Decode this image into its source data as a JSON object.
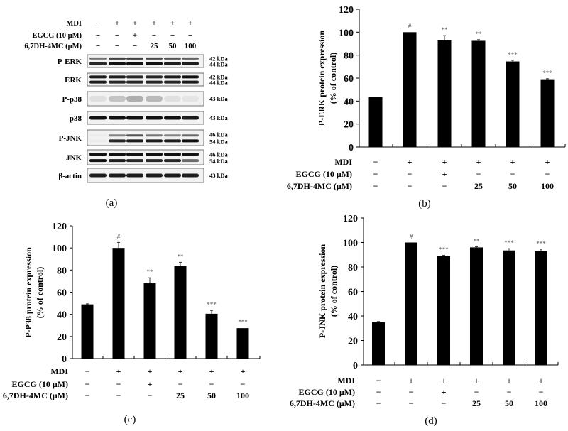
{
  "blot": {
    "panel_label": "(a)",
    "treatments": [
      {
        "label": "MDI",
        "values": [
          "−",
          "+",
          "+",
          "+",
          "+",
          "+"
        ]
      },
      {
        "label": "EGCG (10 μM)",
        "values": [
          "−",
          "−",
          "+",
          "−",
          "−",
          "−"
        ]
      },
      {
        "label": "6,7DH-4MC (μM)",
        "values": [
          "−",
          "−",
          "−",
          "25",
          "50",
          "100"
        ]
      }
    ],
    "rows": [
      {
        "label": "P-ERK",
        "kda": [
          "42 kDa",
          "44 kDa"
        ]
      },
      {
        "label": "ERK",
        "kda": [
          "42 kDa",
          "44 kDa"
        ]
      },
      {
        "label": "P-p38",
        "kda": [
          "43 kDa"
        ]
      },
      {
        "label": "p38",
        "kda": [
          "43 kDa"
        ]
      },
      {
        "label": "P-JNK",
        "kda": [
          "46 kDa",
          "54 kDa"
        ]
      },
      {
        "label": "JNK",
        "kda": [
          "46 kDa",
          "54 kDa"
        ]
      },
      {
        "label": "β-actin",
        "kda": [
          "43 kDa"
        ]
      }
    ]
  },
  "chart_data": [
    {
      "panel_label": "(b)",
      "type": "bar",
      "ylabel": [
        "P-ERK protein expression",
        "(% of control)"
      ],
      "ylim": [
        0,
        120
      ],
      "yticks": [
        0,
        20,
        40,
        60,
        80,
        100,
        120
      ],
      "values": [
        43.5,
        100,
        93,
        92.5,
        74.5,
        59
      ],
      "errors": [
        0.3,
        0.3,
        4,
        1,
        1,
        0.5
      ],
      "annotations": [
        "",
        "#",
        "**",
        "**",
        "***",
        "***"
      ],
      "bar_color": "#000000",
      "treatments": [
        {
          "label": "MDI",
          "values": [
            "−",
            "+",
            "+",
            "+",
            "+",
            "+"
          ]
        },
        {
          "label": "EGCG (10 μM)",
          "values": [
            "−",
            "−",
            "+",
            "−",
            "−",
            "−"
          ]
        },
        {
          "label": "6,7DH-4MC (μM)",
          "values": [
            "−",
            "−",
            "−",
            "25",
            "50",
            "100"
          ]
        }
      ]
    },
    {
      "panel_label": "(c)",
      "type": "bar",
      "ylabel": [
        "P-P38 protein expression",
        "(% of control)"
      ],
      "ylim": [
        0,
        120
      ],
      "yticks": [
        0,
        20,
        40,
        60,
        80,
        100,
        120
      ],
      "values": [
        49,
        100,
        68,
        83.5,
        40.5,
        27.5
      ],
      "errors": [
        0.5,
        5,
        5,
        3.5,
        3,
        0.3
      ],
      "annotations": [
        "",
        "#",
        "**",
        "**",
        "***",
        "***"
      ],
      "bar_color": "#000000",
      "treatments": [
        {
          "label": "MDI",
          "values": [
            "−",
            "+",
            "+",
            "+",
            "+",
            "+"
          ]
        },
        {
          "label": "EGCG (10 μM)",
          "values": [
            "−",
            "−",
            "+",
            "−",
            "−",
            "−"
          ]
        },
        {
          "label": "6,7DH-4MC (μM)",
          "values": [
            "−",
            "−",
            "−",
            "25",
            "50",
            "100"
          ]
        }
      ]
    },
    {
      "panel_label": "(d)",
      "type": "bar",
      "ylabel": [
        "P-JNK protein expression",
        "(% of control)"
      ],
      "ylim": [
        0,
        120
      ],
      "yticks": [
        0,
        20,
        40,
        60,
        80,
        100,
        120
      ],
      "values": [
        35,
        100,
        89,
        96,
        93.5,
        93
      ],
      "errors": [
        0.5,
        0.3,
        0.5,
        0.5,
        1.5,
        1.5
      ],
      "annotations": [
        "",
        "#",
        "***",
        "**",
        "***",
        "***"
      ],
      "bar_color": "#000000",
      "treatments": [
        {
          "label": "MDI",
          "values": [
            "−",
            "+",
            "+",
            "+",
            "+",
            "+"
          ]
        },
        {
          "label": "EGCG (10 μM)",
          "values": [
            "−",
            "−",
            "+",
            "−",
            "−",
            "−"
          ]
        },
        {
          "label": "6,7DH-4MC (μM)",
          "values": [
            "−",
            "−",
            "−",
            "25",
            "50",
            "100"
          ]
        }
      ]
    }
  ]
}
